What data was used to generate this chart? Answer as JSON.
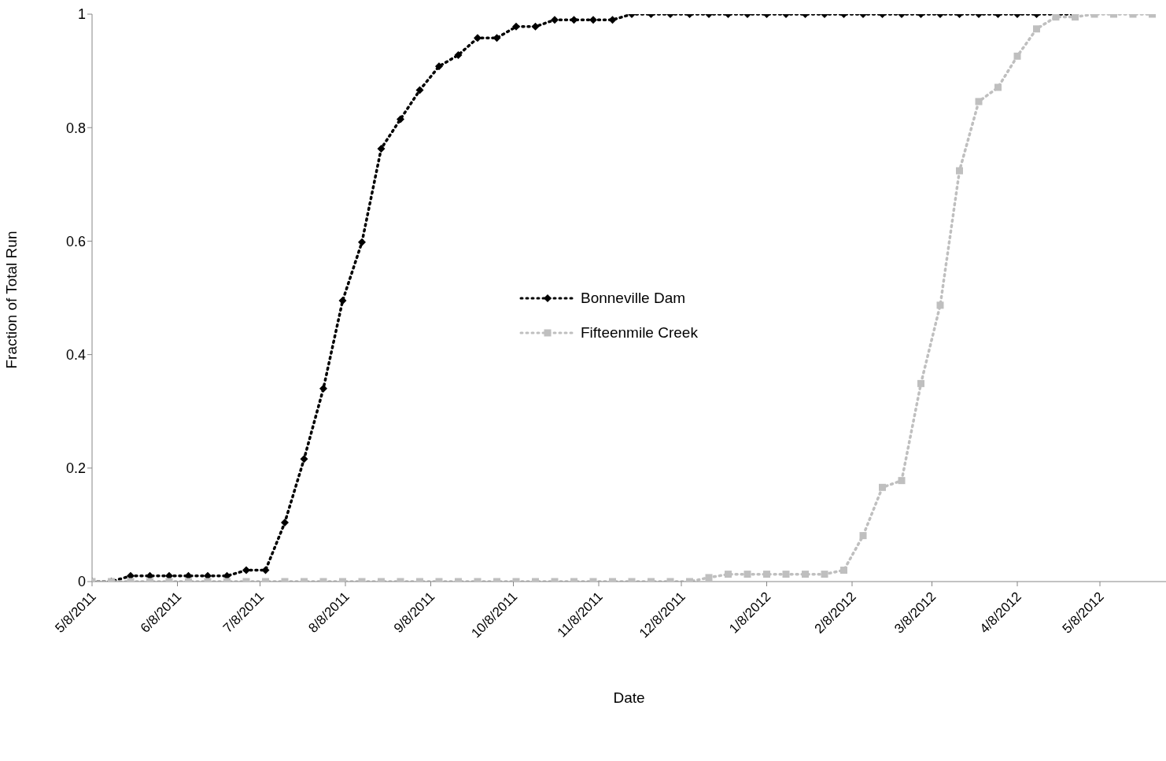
{
  "chart_data": {
    "type": "line",
    "xlabel": "Date",
    "ylabel": "Fraction of Total Run",
    "x": [
      "2011-05-08",
      "2011-05-15",
      "2011-05-22",
      "2011-05-29",
      "2011-06-05",
      "2011-06-12",
      "2011-06-19",
      "2011-06-26",
      "2011-07-03",
      "2011-07-10",
      "2011-07-17",
      "2011-07-24",
      "2011-07-31",
      "2011-08-07",
      "2011-08-14",
      "2011-08-21",
      "2011-08-28",
      "2011-09-04",
      "2011-09-11",
      "2011-09-18",
      "2011-09-25",
      "2011-10-02",
      "2011-10-09",
      "2011-10-16",
      "2011-10-23",
      "2011-10-30",
      "2011-11-06",
      "2011-11-13",
      "2011-11-20",
      "2011-11-27",
      "2011-12-04",
      "2011-12-11",
      "2011-12-18",
      "2011-12-25",
      "2012-01-01",
      "2012-01-08",
      "2012-01-15",
      "2012-01-22",
      "2012-01-29",
      "2012-02-05",
      "2012-02-12",
      "2012-02-19",
      "2012-02-26",
      "2012-03-04",
      "2012-03-11",
      "2012-03-18",
      "2012-03-25",
      "2012-04-01",
      "2012-04-08",
      "2012-04-15",
      "2012-04-22",
      "2012-04-29",
      "2012-05-06",
      "2012-05-13",
      "2012-05-20",
      "2012-05-27"
    ],
    "series": [
      {
        "name": "Bonneville Dam",
        "color": "#000000",
        "marker": "diamond",
        "values": [
          0,
          0,
          0.01,
          0.01,
          0.01,
          0.01,
          0.01,
          0.01,
          0.02,
          0.02,
          0.104,
          0.216,
          0.34,
          0.495,
          0.598,
          0.763,
          0.815,
          0.866,
          0.908,
          0.928,
          0.958,
          0.958,
          0.978,
          0.978,
          0.99,
          0.99,
          0.99,
          0.99,
          1,
          1,
          1,
          1,
          1,
          1,
          1,
          1,
          1,
          1,
          1,
          1,
          1,
          1,
          1,
          1,
          1,
          1,
          1,
          1,
          1,
          1,
          1,
          1,
          null,
          null,
          null,
          null
        ]
      },
      {
        "name": "Fifteenmile Creek",
        "color": "#bfbfbf",
        "marker": "square",
        "values": [
          0,
          0,
          0,
          0,
          0,
          0,
          0,
          0,
          0,
          0,
          0,
          0,
          0,
          0,
          0,
          0,
          0,
          0,
          0,
          0,
          0,
          0,
          0,
          0,
          0,
          0,
          0,
          0,
          0,
          0,
          0,
          0,
          0.007,
          0.013,
          0.013,
          0.013,
          0.013,
          0.013,
          0.013,
          0.02,
          0.081,
          0.166,
          0.178,
          0.349,
          0.487,
          0.724,
          0.846,
          0.871,
          0.926,
          0.974,
          0.995,
          0.995,
          1,
          1,
          1,
          1
        ]
      }
    ],
    "xlim": [
      "2011-05-08",
      "2012-06-01"
    ],
    "xticks": [
      {
        "value": "2011-05-08",
        "label": "5/8/2011"
      },
      {
        "value": "2011-06-08",
        "label": "6/8/2011"
      },
      {
        "value": "2011-07-08",
        "label": "7/8/2011"
      },
      {
        "value": "2011-08-08",
        "label": "8/8/2011"
      },
      {
        "value": "2011-09-08",
        "label": "9/8/2011"
      },
      {
        "value": "2011-10-08",
        "label": "10/8/2011"
      },
      {
        "value": "2011-11-08",
        "label": "11/8/2011"
      },
      {
        "value": "2011-12-08",
        "label": "12/8/2011"
      },
      {
        "value": "2012-01-08",
        "label": "1/8/2012"
      },
      {
        "value": "2012-02-08",
        "label": "2/8/2012"
      },
      {
        "value": "2012-03-08",
        "label": "3/8/2012"
      },
      {
        "value": "2012-04-08",
        "label": "4/8/2012"
      },
      {
        "value": "2012-05-08",
        "label": "5/8/2012"
      }
    ],
    "ylim": [
      0,
      1
    ],
    "yticks": [
      0,
      0.2,
      0.4,
      0.6,
      0.8,
      1
    ],
    "grid": false,
    "legend": "center",
    "line_style": "dotted"
  }
}
